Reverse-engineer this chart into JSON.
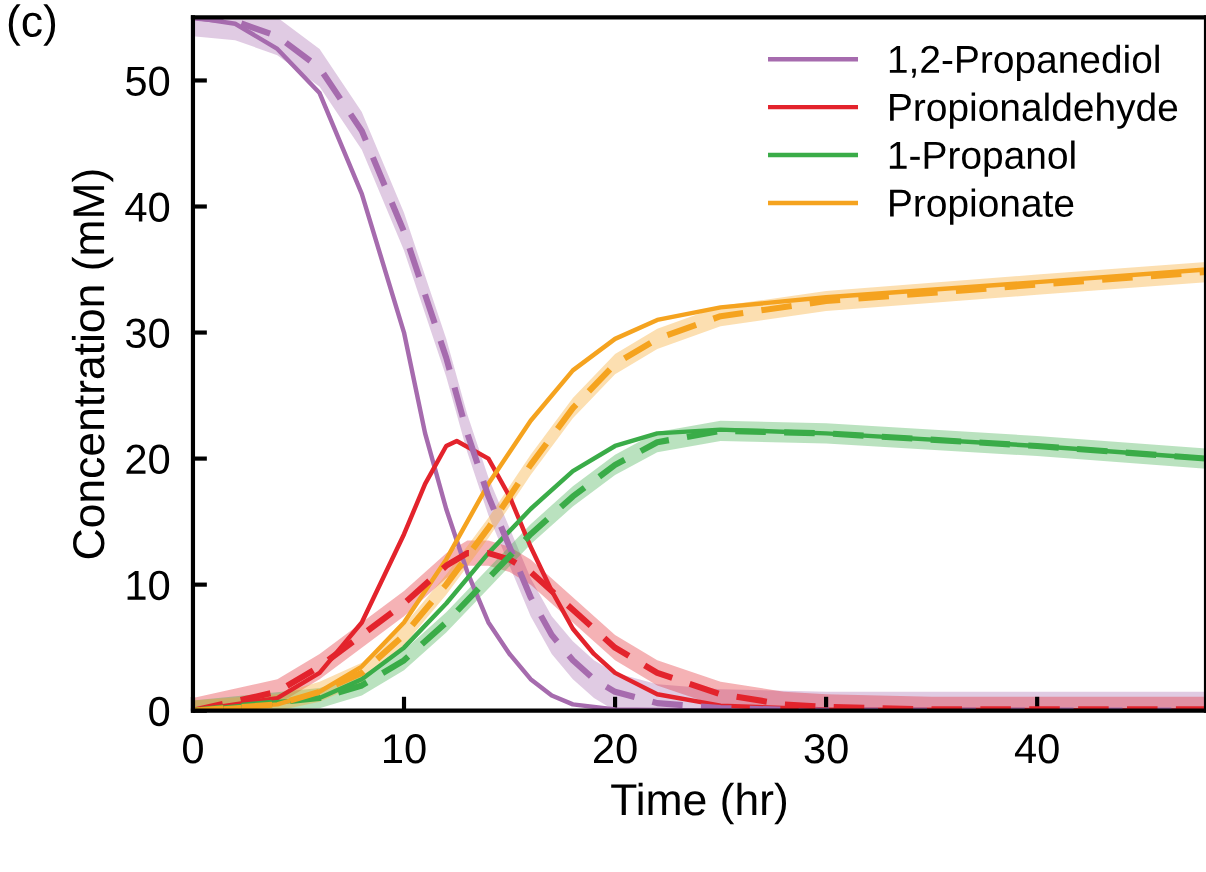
{
  "chart_data": {
    "type": "line",
    "xlabel": "Time (hr)",
    "ylabel": "Concentration (mM)",
    "annotations": [
      "(c)"
    ],
    "xlim": [
      0,
      48
    ],
    "ylim": [
      0,
      55
    ],
    "xticks": [
      0,
      10,
      20,
      30,
      40
    ],
    "yticks": [
      0,
      10,
      20,
      30,
      40,
      50
    ],
    "grid": false,
    "legend": "top right",
    "marker": "none",
    "line_style": "solid",
    "series": [
      {
        "name": "1,2-Propanediol",
        "color": "#a66bae",
        "x": [
          0,
          2,
          4,
          6,
          8,
          10,
          11,
          12,
          13,
          14,
          15,
          16,
          17,
          18,
          20,
          25,
          48
        ],
        "values": [
          55,
          54.5,
          52.5,
          49,
          41,
          30,
          22,
          16,
          11,
          7,
          4.5,
          2.5,
          1.2,
          0.5,
          0.1,
          0,
          0
        ]
      },
      {
        "name": "Propionaldehyde",
        "color": "#e3232c",
        "x": [
          0,
          4,
          6,
          8,
          10,
          11,
          12,
          12.5,
          14,
          15,
          16,
          17,
          18,
          19,
          20,
          22,
          25,
          30,
          48
        ],
        "values": [
          0,
          1,
          3,
          7,
          14,
          18,
          21,
          21.4,
          20,
          17,
          13,
          9.5,
          6.5,
          4.5,
          3,
          1.3,
          0.4,
          0.1,
          0
        ]
      },
      {
        "name": "1-Propanol",
        "color": "#3aac48",
        "x": [
          0,
          6,
          8,
          10,
          12,
          14,
          16,
          18,
          20,
          22,
          25,
          30,
          40,
          48
        ],
        "values": [
          0,
          1,
          2.5,
          5,
          8.5,
          12.5,
          16,
          19,
          21,
          22,
          22.3,
          22,
          21,
          20
        ]
      },
      {
        "name": "Propionate",
        "color": "#f5a31f",
        "x": [
          0,
          4,
          6,
          8,
          10,
          12,
          14,
          16,
          18,
          20,
          22,
          25,
          30,
          40,
          48
        ],
        "values": [
          0,
          0.5,
          1.5,
          3.5,
          7,
          12,
          18,
          23,
          27,
          29.5,
          31,
          32,
          32.8,
          34,
          35
        ]
      },
      {
        "color": "#a66bae",
        "line_style": "dashed",
        "x": [
          0,
          2,
          4,
          6,
          8,
          10,
          12,
          13,
          14,
          15,
          16,
          17,
          18,
          19,
          20,
          22,
          25,
          30,
          48
        ],
        "values": [
          55,
          54.7,
          53.5,
          51,
          46,
          38,
          28,
          22,
          17,
          13,
          9,
          6,
          4,
          2.5,
          1.5,
          0.6,
          0.2,
          0,
          0
        ],
        "lower": [
          53.5,
          53.2,
          52,
          49.5,
          44.5,
          36.5,
          26.5,
          20.5,
          15.5,
          11.5,
          7.5,
          4.5,
          2.5,
          1,
          0,
          0,
          0,
          0,
          0
        ],
        "upper": [
          55,
          55,
          55,
          52.5,
          47.5,
          39.5,
          29.5,
          23.5,
          18.5,
          14.5,
          10.5,
          7.5,
          5.5,
          4,
          3,
          2.1,
          1.7,
          1.5,
          1.5
        ]
      },
      {
        "color": "#e3232c",
        "line_style": "dashed",
        "x": [
          0,
          4,
          6,
          8,
          10,
          12,
          13,
          14,
          15,
          16,
          18,
          20,
          22,
          25,
          28,
          30,
          35,
          48
        ],
        "values": [
          0,
          1.5,
          3.5,
          6,
          8.5,
          11.5,
          12.5,
          12.5,
          12,
          11,
          8,
          5,
          3,
          1.3,
          0.5,
          0.3,
          0.1,
          0.1
        ],
        "lower": [
          0,
          0.5,
          2.5,
          5,
          7.5,
          10.5,
          11.5,
          11.5,
          11,
          10,
          7,
          4,
          2,
          0.3,
          0,
          0,
          0,
          0
        ],
        "upper": [
          1,
          2.5,
          4.5,
          7,
          9.5,
          12.5,
          13.5,
          13.5,
          13,
          12,
          9,
          6,
          4,
          2.3,
          1.5,
          1.3,
          1.1,
          1.1
        ]
      },
      {
        "color": "#3aac48",
        "line_style": "dashed",
        "x": [
          0,
          6,
          8,
          10,
          12,
          14,
          16,
          18,
          20,
          22,
          25,
          30,
          40,
          48
        ],
        "values": [
          0,
          1,
          2,
          4,
          7,
          10.5,
          14,
          17,
          19.5,
          21.3,
          22.2,
          22,
          21,
          20
        ],
        "lower": [
          0,
          0.2,
          1.2,
          3.2,
          6.2,
          9.7,
          13.2,
          16.2,
          18.7,
          20.5,
          21.4,
          21.2,
          20.2,
          19.2
        ],
        "upper": [
          0.8,
          1.8,
          2.8,
          4.8,
          7.8,
          11.3,
          14.8,
          17.8,
          20.3,
          22.1,
          23,
          22.8,
          21.8,
          20.8
        ]
      },
      {
        "color": "#f5a31f",
        "line_style": "dashed",
        "x": [
          0,
          4,
          6,
          8,
          10,
          12,
          14,
          16,
          18,
          20,
          22,
          25,
          30,
          40,
          48
        ],
        "values": [
          0,
          0.5,
          1.5,
          3,
          6,
          10,
          14.5,
          19.5,
          24,
          27.5,
          29.5,
          31.3,
          32.5,
          33.8,
          34.8
        ],
        "lower": [
          0,
          0,
          0.7,
          2.2,
          5.2,
          9.2,
          13.7,
          18.7,
          23.2,
          26.7,
          28.7,
          30.5,
          31.7,
          33,
          34
        ],
        "upper": [
          0.8,
          1.3,
          2.3,
          3.8,
          6.8,
          10.8,
          15.3,
          20.3,
          24.8,
          28.3,
          30.3,
          32.1,
          33.3,
          34.6,
          35.6
        ]
      }
    ]
  }
}
